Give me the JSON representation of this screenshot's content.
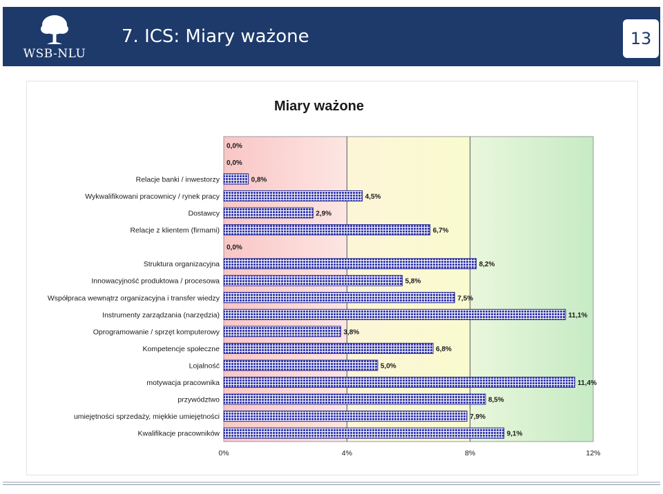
{
  "header": {
    "logo_text": "WSB-NLU",
    "title": "7. ICS: Miary ważone",
    "page_number": "13"
  },
  "icons": {
    "logo": "tree-icon"
  },
  "colors": {
    "header_bg": "#1d3a6b",
    "bar_fill": "#3b3fb0",
    "bg_red": "#f9c9c9",
    "bg_yellow": "#fbfbd0",
    "bg_green": "#cdeecb"
  },
  "chart_data": {
    "type": "bar",
    "orientation": "horizontal",
    "title": "Miary ważone",
    "categories": [
      "",
      "",
      "Relacje banki / inwestorzy",
      "Wykwalifikowani pracownicy / rynek pracy",
      "Dostawcy",
      "Relacje z klientem (firmami)",
      "",
      "Struktura organizacyjna",
      "Innowacyjność produktowa / procesowa",
      "Współpraca wewnątrz organizacyjna i transfer wiedzy",
      "Instrumenty zarządzania (narzędzia)",
      "Oprogramowanie / sprzęt komputerowy",
      "Kompetencje społeczne",
      "Lojalność",
      "motywacja pracownika",
      "przywództwo",
      "umiejętności sprzedaży, miękkie umiejętności",
      "Kwalifikacje pracowników"
    ],
    "values": [
      0.0,
      0.0,
      0.8,
      4.5,
      2.9,
      6.7,
      0.0,
      8.2,
      5.8,
      7.5,
      11.1,
      3.8,
      6.8,
      5.0,
      11.4,
      8.5,
      7.9,
      9.1
    ],
    "value_labels": [
      "0,0%",
      "0,0%",
      "0,8%",
      "4,5%",
      "2,9%",
      "6,7%",
      "0,0%",
      "8,2%",
      "5,8%",
      "7,5%",
      "11,1%",
      "3,8%",
      "6,8%",
      "5,0%",
      "11,4%",
      "8,5%",
      "7,9%",
      "9,1%"
    ],
    "x_ticks": [
      0,
      4,
      8,
      12
    ],
    "x_tick_labels": [
      "0%",
      "4%",
      "8%",
      "12%"
    ],
    "xlim": [
      0,
      12
    ],
    "xlabel": "",
    "ylabel": "",
    "grid": "vertical lines at 4% and 8%",
    "background_bands": [
      "red 0-4%",
      "yellow 4-8%",
      "green 8-12%"
    ],
    "legend": "none"
  }
}
